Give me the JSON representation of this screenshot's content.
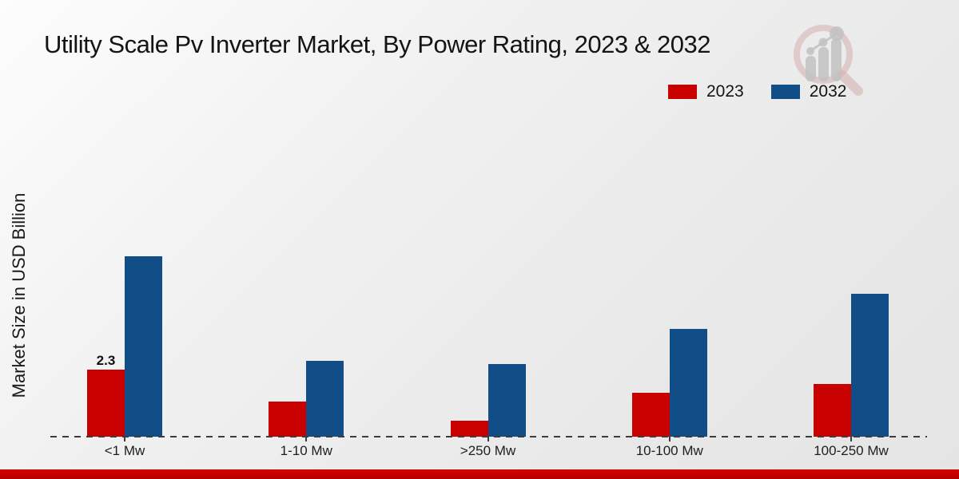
{
  "page": {
    "title": "Utility Scale Pv Inverter Market, By Power Rating, 2023 & 2032",
    "ylabel": "Market Size in USD Billion"
  },
  "legend": {
    "position": "top-right",
    "items": [
      {
        "label": "2023",
        "color": "#c90000"
      },
      {
        "label": "2032",
        "color": "#114e87"
      }
    ]
  },
  "colors": {
    "series_2023": "#c90000",
    "series_2032": "#114e87",
    "axis_dash": "#3c3c3c",
    "bottom_strip": "#c90000",
    "watermark_ring": "#d4a9a9",
    "watermark_bars": "#c2c2c2"
  },
  "chart_data": {
    "type": "bar",
    "title": "Utility Scale Pv Inverter Market, By Power Rating, 2023 & 2032",
    "xlabel": "",
    "ylabel": "Market Size in USD Billion",
    "categories": [
      "<1 Mw",
      "1-10 Mw",
      ">250 Mw",
      "10-100 Mw",
      "100-250 Mw"
    ],
    "series": [
      {
        "name": "2023",
        "color": "#c90000",
        "values": [
          2.3,
          1.2,
          0.55,
          1.5,
          1.8
        ]
      },
      {
        "name": "2032",
        "color": "#114e87",
        "values": [
          6.2,
          2.6,
          2.5,
          3.7,
          4.9
        ]
      }
    ],
    "data_labels": [
      {
        "series": "2023",
        "category": "<1 Mw",
        "text": "2.3"
      }
    ],
    "ylim": [
      0,
      7
    ],
    "grid": false,
    "y_axis_ticks_visible": false,
    "legend_position": "top-right"
  },
  "watermark": {
    "name": "magnifier-bar-chart-logo"
  }
}
